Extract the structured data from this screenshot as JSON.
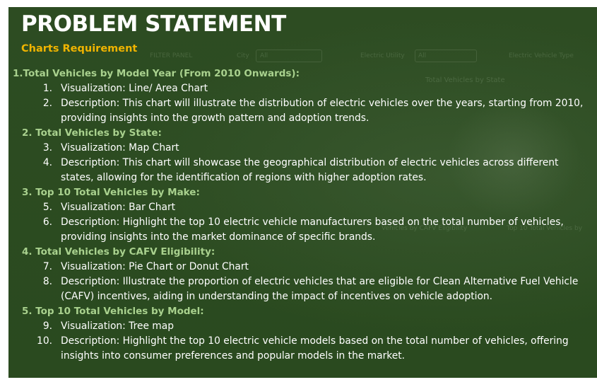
{
  "title": "PROBLEM STATEMENT",
  "subtitle": "Charts Requirement",
  "background_ghost": {
    "filter_panel": "FILTER PANEL",
    "city_label": "City",
    "city_value": "All",
    "utility_label": "Electric Utility",
    "utility_value": "All",
    "ev_type_label": "Electric Vehicle Type",
    "state_chart_label": "Total Vehicles by State",
    "cafv_label": "Vehicles by CAFV Eligibility",
    "top10_label": "Top 10 Total Vehicles by"
  },
  "sections": [
    {
      "heading": "1.Total Vehicles by Model Year (From 2010 Onwards):",
      "items": [
        {
          "num": "1.",
          "text": "Visualization: Line/ Area Chart"
        },
        {
          "num": "2.",
          "text": "Description: This chart will illustrate the distribution of electric vehicles over the years, starting from 2010, providing insights into the growth pattern and adoption trends."
        }
      ]
    },
    {
      "heading": "2. Total Vehicles by State:",
      "items": [
        {
          "num": "3.",
          "text": "Visualization: Map Chart"
        },
        {
          "num": "4.",
          "text": "Description: This chart will showcase the geographical distribution of electric vehicles across different states, allowing for the identification of regions with higher adoption rates."
        }
      ]
    },
    {
      "heading": "3. Top 10 Total Vehicles by Make:",
      "items": [
        {
          "num": "5.",
          "text": "Visualization: Bar Chart"
        },
        {
          "num": "6.",
          "text": "Description: Highlight the top 10 electric vehicle manufacturers based on the total number of vehicles, providing insights into the market dominance of specific brands."
        }
      ]
    },
    {
      "heading": "4. Total Vehicles by CAFV Eligibility:",
      "items": [
        {
          "num": "7.",
          "text": "Visualization: Pie Chart or Donut Chart"
        },
        {
          "num": "8.",
          "text": "Description: Illustrate the proportion of electric vehicles that are eligible for Clean Alternative Fuel Vehicle (CAFV) incentives, aiding in understanding the impact of incentives on vehicle adoption."
        }
      ]
    },
    {
      "heading": "5. Top 10 Total Vehicles by Model:",
      "items": [
        {
          "num": "9.",
          "text": "Visualization: Tree map"
        },
        {
          "num": "10.",
          "text": "Description: Highlight the top 10 electric vehicle models based on the total number of vehicles, offering insights into consumer preferences and popular models in the market."
        }
      ]
    }
  ]
}
